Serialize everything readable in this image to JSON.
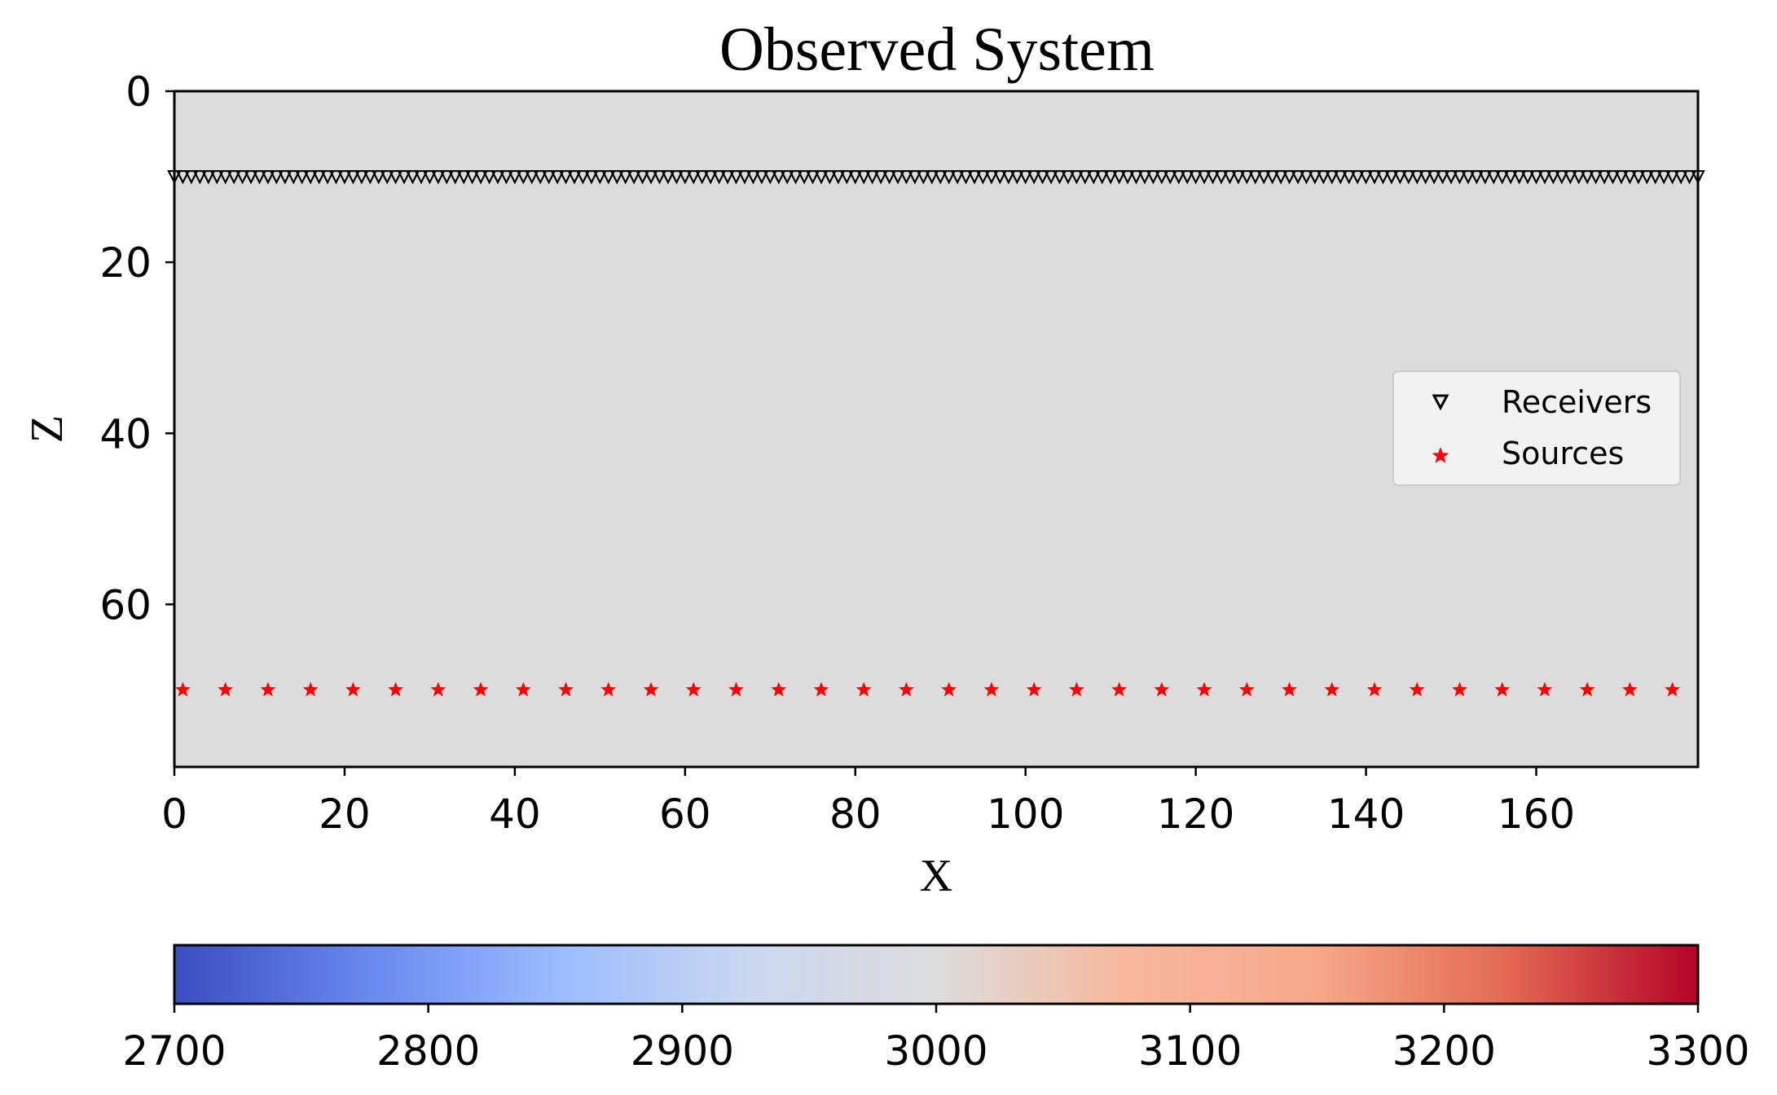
{
  "chart_data": {
    "type": "scatter",
    "title": "Observed System",
    "xlabel": "X",
    "ylabel": "Z",
    "xlim": [
      0,
      179
    ],
    "ylim": [
      79,
      0
    ],
    "y_inverted": true,
    "xticks": [
      0,
      20,
      40,
      60,
      80,
      100,
      120,
      140,
      160
    ],
    "yticks": [
      0,
      20,
      40,
      60
    ],
    "background_value": 3000,
    "background_color": "#dddcdc",
    "legend_placement": "center-right",
    "series": [
      {
        "name": "Receivers",
        "marker": "triangle-down-hollow",
        "color": "#000000",
        "x_start": 0,
        "x_end": 179,
        "x_step": 1,
        "z": 10
      },
      {
        "name": "Sources",
        "marker": "star",
        "color": "#ff0000",
        "x": [
          1,
          6,
          11,
          16,
          21,
          26,
          31,
          36,
          41,
          46,
          51,
          56,
          61,
          66,
          71,
          76,
          81,
          86,
          91,
          96,
          101,
          106,
          111,
          116,
          121,
          126,
          131,
          136,
          141,
          146,
          151,
          156,
          161,
          166,
          171,
          176
        ],
        "z": 70
      }
    ],
    "colorbar": {
      "colormap": "coolwarm",
      "vmin": 2700,
      "vmax": 3300,
      "ticks": [
        "2700",
        "2800",
        "2900",
        "3000",
        "3100",
        "3200",
        "3300"
      ],
      "colors": [
        "#3b4cc0",
        "#6788ee",
        "#9abbff",
        "#c9d7f0",
        "#dddcdc",
        "#f7b89c",
        "#f7a889",
        "#e26952",
        "#b40426"
      ]
    }
  }
}
